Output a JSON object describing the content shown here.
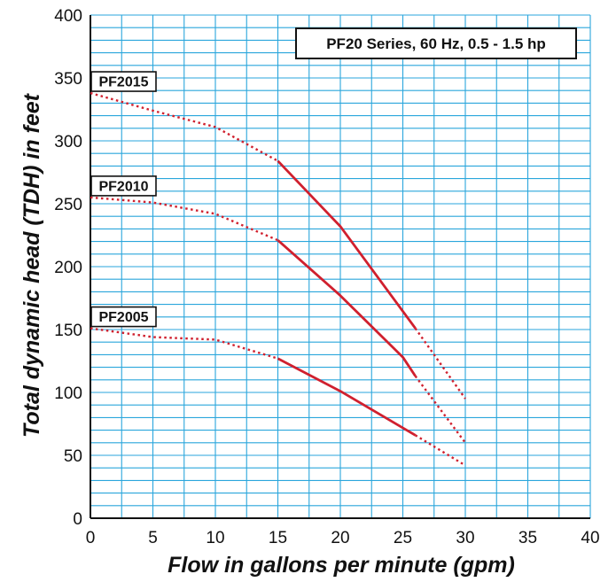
{
  "chart_data": {
    "type": "line",
    "title": "PF20 Series, 60 Hz, 0.5 - 1.5 hp",
    "xlabel": "Flow in gallons per minute (gpm)",
    "ylabel": "Total dynamic head (TDH) in feet",
    "xlim": [
      0,
      40
    ],
    "ylim": [
      0,
      400
    ],
    "xticks": [
      0,
      5,
      10,
      15,
      20,
      25,
      30,
      35,
      40
    ],
    "yticks": [
      0,
      50,
      100,
      150,
      200,
      250,
      300,
      350,
      400
    ],
    "grid": true,
    "colors": {
      "grid": "#2aa6dc",
      "line": "#d0202e",
      "axis": "#111111"
    },
    "series": [
      {
        "name": "PF2015",
        "dotted_start": [
          [
            0,
            338
          ],
          [
            5,
            324
          ],
          [
            10,
            311
          ],
          [
            15,
            284
          ]
        ],
        "solid": [
          [
            15,
            284
          ],
          [
            20,
            232
          ],
          [
            26,
            151
          ]
        ],
        "dotted_end": [
          [
            26,
            151
          ],
          [
            30,
            95
          ]
        ]
      },
      {
        "name": "PF2010",
        "dotted_start": [
          [
            0,
            255
          ],
          [
            5,
            251
          ],
          [
            10,
            242
          ],
          [
            15,
            221
          ]
        ],
        "solid": [
          [
            15,
            221
          ],
          [
            20,
            177
          ],
          [
            25,
            128
          ],
          [
            26,
            113
          ]
        ],
        "dotted_end": [
          [
            26,
            113
          ],
          [
            30,
            60
          ]
        ]
      },
      {
        "name": "PF2005",
        "dotted_start": [
          [
            0,
            151
          ],
          [
            5,
            144
          ],
          [
            10,
            142
          ],
          [
            15,
            127
          ]
        ],
        "solid": [
          [
            15,
            127
          ],
          [
            20,
            101
          ],
          [
            26,
            66
          ]
        ],
        "dotted_end": [
          [
            26,
            66
          ],
          [
            30,
            42
          ]
        ]
      }
    ]
  }
}
